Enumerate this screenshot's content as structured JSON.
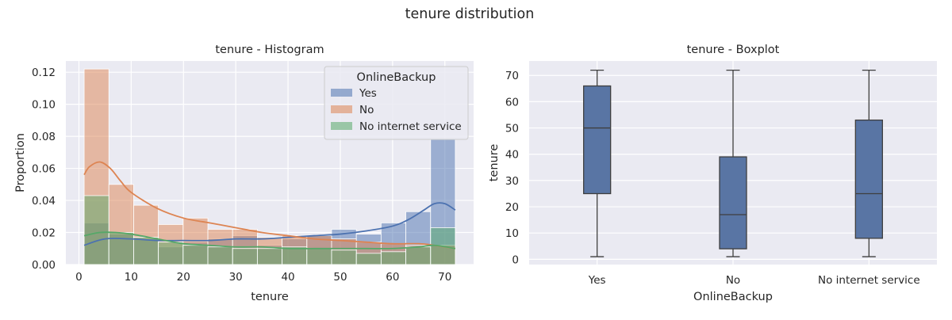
{
  "figure": {
    "title": "tenure distribution"
  },
  "chart_data": [
    {
      "type": "histogram",
      "title": "tenure - Histogram",
      "xlabel": "tenure",
      "ylabel": "Proportion",
      "xlim": [
        -2.5,
        75.5
      ],
      "ylim": [
        0,
        0.127
      ],
      "x_ticks": [
        0,
        10,
        20,
        30,
        40,
        50,
        60,
        70
      ],
      "y_ticks": [
        0.0,
        0.02,
        0.04,
        0.06,
        0.08,
        0.1,
        0.12
      ],
      "grid": true,
      "legend": {
        "title": "OnlineBackup",
        "placement": "top-right"
      },
      "bin_edges": [
        1,
        5.73,
        10.47,
        15.2,
        19.93,
        24.67,
        29.4,
        34.13,
        38.87,
        43.6,
        48.33,
        53.07,
        57.8,
        62.53,
        67.27,
        72
      ],
      "series": [
        {
          "name": "Yes",
          "color": "#4c72b0",
          "values": [
            0.026,
            0.019,
            0.016,
            0.011,
            0.014,
            0.016,
            0.018,
            0.012,
            0.016,
            0.018,
            0.022,
            0.019,
            0.026,
            0.033,
            0.078
          ],
          "kde": {
            "x": [
              1,
              5,
              10,
              15,
              20,
              25,
              30,
              35,
              40,
              45,
              50,
              55,
              60,
              63,
              66,
              68,
              70,
              72
            ],
            "y": [
              0.012,
              0.016,
              0.016,
              0.015,
              0.015,
              0.015,
              0.016,
              0.016,
              0.017,
              0.018,
              0.019,
              0.021,
              0.024,
              0.028,
              0.034,
              0.038,
              0.038,
              0.034
            ]
          }
        },
        {
          "name": "No",
          "color": "#dd8452",
          "values": [
            0.122,
            0.05,
            0.037,
            0.025,
            0.029,
            0.022,
            0.022,
            0.017,
            0.018,
            0.018,
            0.016,
            0.014,
            0.013,
            0.012,
            0.012
          ],
          "kde": {
            "x": [
              1,
              2,
              4,
              6,
              8,
              10,
              15,
              20,
              25,
              30,
              35,
              40,
              45,
              50,
              55,
              60,
              65,
              68,
              72
            ],
            "y": [
              0.056,
              0.061,
              0.064,
              0.06,
              0.052,
              0.045,
              0.035,
              0.029,
              0.026,
              0.023,
              0.02,
              0.018,
              0.016,
              0.015,
              0.014,
              0.013,
              0.013,
              0.012,
              0.01
            ]
          }
        },
        {
          "name": "No internet service",
          "color": "#55a868",
          "values": [
            0.043,
            0.02,
            0.017,
            0.014,
            0.012,
            0.011,
            0.01,
            0.01,
            0.011,
            0.01,
            0.009,
            0.007,
            0.008,
            0.011,
            0.023
          ],
          "kde": {
            "x": [
              1,
              4,
              7,
              10,
              15,
              20,
              25,
              30,
              35,
              40,
              45,
              50,
              55,
              60,
              65,
              68,
              72
            ],
            "y": [
              0.018,
              0.02,
              0.02,
              0.019,
              0.016,
              0.013,
              0.012,
              0.011,
              0.011,
              0.01,
              0.01,
              0.01,
              0.01,
              0.01,
              0.011,
              0.012,
              0.01
            ]
          }
        }
      ]
    },
    {
      "type": "boxplot",
      "title": "tenure - Boxplot",
      "xlabel": "OnlineBackup",
      "ylabel": "tenure",
      "ylim": [
        -2,
        75.5
      ],
      "y_ticks": [
        0,
        10,
        20,
        30,
        40,
        50,
        60,
        70
      ],
      "grid": true,
      "box_color": "#5975a4",
      "categories": [
        "Yes",
        "No",
        "No internet service"
      ],
      "boxes": [
        {
          "category": "Yes",
          "whisker_low": 1,
          "q1": 25,
          "median": 50,
          "q3": 66,
          "whisker_high": 72
        },
        {
          "category": "No",
          "whisker_low": 1,
          "q1": 4,
          "median": 17,
          "q3": 39,
          "whisker_high": 72
        },
        {
          "category": "No internet service",
          "whisker_low": 1,
          "q1": 8,
          "median": 25,
          "q3": 53,
          "whisker_high": 72
        }
      ]
    }
  ]
}
